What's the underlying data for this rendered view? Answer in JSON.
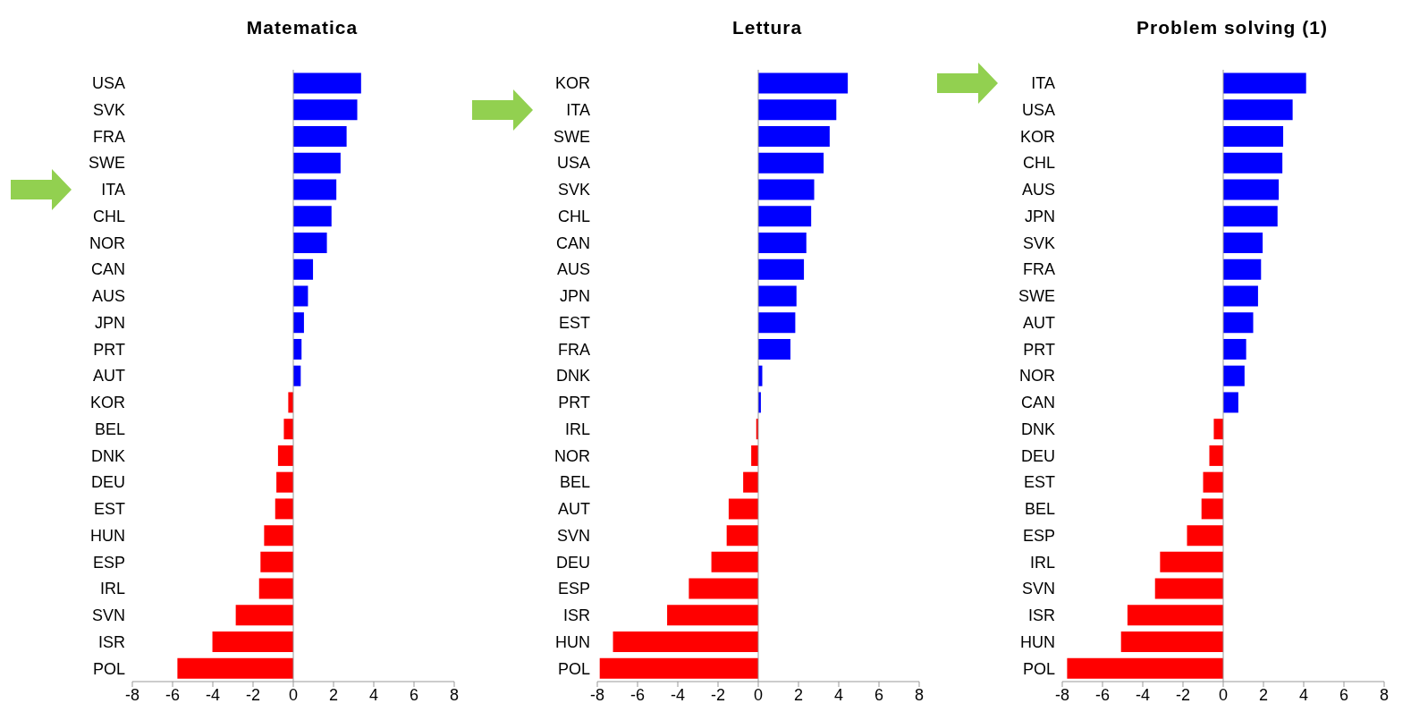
{
  "chart_data": [
    {
      "type": "bar",
      "orientation": "horizontal",
      "title": "Matematica",
      "categories": [
        "USA",
        "SVK",
        "FRA",
        "SWE",
        "ITA",
        "CHL",
        "NOR",
        "CAN",
        "AUS",
        "JPN",
        "PRT",
        "AUT",
        "KOR",
        "BEL",
        "DNK",
        "DEU",
        "EST",
        "HUN",
        "ESP",
        "IRL",
        "SVN",
        "ISR",
        "POL"
      ],
      "values": [
        3.37,
        3.18,
        2.65,
        2.35,
        2.14,
        1.9,
        1.67,
        0.98,
        0.73,
        0.53,
        0.41,
        0.37,
        -0.25,
        -0.47,
        -0.76,
        -0.84,
        -0.9,
        -1.45,
        -1.63,
        -1.7,
        -2.86,
        -4.02,
        -5.76
      ],
      "colors": [
        "#0000ff",
        "#0000ff",
        "#0000ff",
        "#0000ff",
        "#0000ff",
        "#0000ff",
        "#0000ff",
        "#0000ff",
        "#0000ff",
        "#0000ff",
        "#0000ff",
        "#0000ff",
        "#ff0000",
        "#ff0000",
        "#ff0000",
        "#ff0000",
        "#ff0000",
        "#ff0000",
        "#ff0000",
        "#ff0000",
        "#ff0000",
        "#ff0000",
        "#ff0000"
      ],
      "xlim": [
        -8,
        8
      ],
      "xticks": [
        -8,
        -6,
        -4,
        -2,
        0,
        2,
        4,
        6,
        8
      ]
    },
    {
      "type": "bar",
      "orientation": "horizontal",
      "title": "Lettura",
      "categories": [
        "KOR",
        "ITA",
        "SWE",
        "USA",
        "SVK",
        "CHL",
        "CAN",
        "AUS",
        "JPN",
        "EST",
        "FRA",
        "DNK",
        "PRT",
        "IRL",
        "NOR",
        "BEL",
        "AUT",
        "SVN",
        "DEU",
        "ESP",
        "ISR",
        "HUN",
        "POL"
      ],
      "values": [
        4.45,
        3.88,
        3.55,
        3.25,
        2.78,
        2.63,
        2.39,
        2.27,
        1.9,
        1.84,
        1.6,
        0.2,
        0.13,
        -0.1,
        -0.35,
        -0.75,
        -1.47,
        -1.57,
        -2.33,
        -3.45,
        -4.53,
        -7.22,
        -7.88
      ],
      "colors": [
        "#0000ff",
        "#0000ff",
        "#0000ff",
        "#0000ff",
        "#0000ff",
        "#0000ff",
        "#0000ff",
        "#0000ff",
        "#0000ff",
        "#0000ff",
        "#0000ff",
        "#0000ff",
        "#0000ff",
        "#ff0000",
        "#ff0000",
        "#ff0000",
        "#ff0000",
        "#ff0000",
        "#ff0000",
        "#ff0000",
        "#ff0000",
        "#ff0000",
        "#ff0000"
      ],
      "xlim": [
        -8,
        8
      ],
      "xticks": [
        -8,
        -6,
        -4,
        -2,
        0,
        2,
        4,
        6,
        8
      ]
    },
    {
      "type": "bar",
      "orientation": "horizontal",
      "title": "Problem solving (1)",
      "categories": [
        "ITA",
        "USA",
        "KOR",
        "CHL",
        "AUS",
        "JPN",
        "SVK",
        "FRA",
        "SWE",
        "AUT",
        "PRT",
        "NOR",
        "CAN",
        "DNK",
        "DEU",
        "EST",
        "BEL",
        "ESP",
        "IRL",
        "SVN",
        "ISR",
        "HUN",
        "POL"
      ],
      "values": [
        4.12,
        3.45,
        2.98,
        2.94,
        2.76,
        2.7,
        1.96,
        1.88,
        1.73,
        1.49,
        1.14,
        1.06,
        0.75,
        -0.47,
        -0.69,
        -1.0,
        -1.08,
        -1.8,
        -3.14,
        -3.39,
        -4.76,
        -5.08,
        -7.76
      ],
      "colors": [
        "#0000ff",
        "#0000ff",
        "#0000ff",
        "#0000ff",
        "#0000ff",
        "#0000ff",
        "#0000ff",
        "#0000ff",
        "#0000ff",
        "#0000ff",
        "#0000ff",
        "#0000ff",
        "#0000ff",
        "#ff0000",
        "#ff0000",
        "#ff0000",
        "#ff0000",
        "#ff0000",
        "#ff0000",
        "#ff0000",
        "#ff0000",
        "#ff0000",
        "#ff0000"
      ],
      "xlim": [
        -8,
        8
      ],
      "xticks": [
        -8,
        -6,
        -4,
        -2,
        0,
        2,
        4,
        6,
        8
      ]
    }
  ]
}
